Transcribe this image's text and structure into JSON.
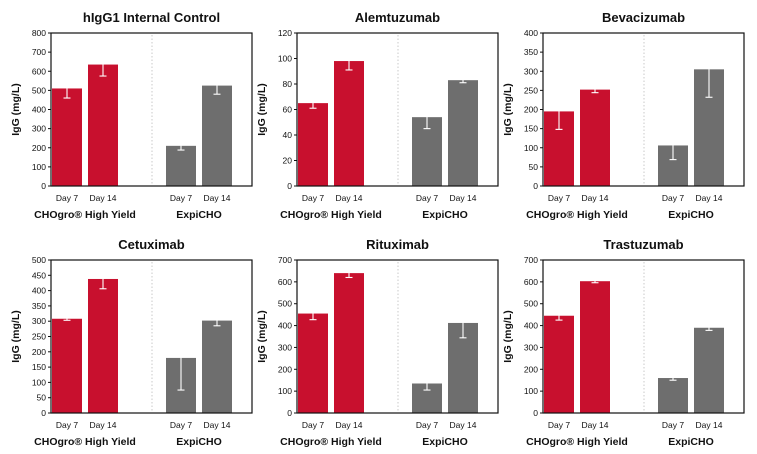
{
  "chart_data": [
    {
      "type": "bar",
      "title": "hIgG1 Internal Control",
      "ylabel": "IgG (mg/L)",
      "ylim": [
        0,
        800
      ],
      "yticks": [
        0,
        100,
        200,
        300,
        400,
        500,
        600,
        700,
        800
      ],
      "categories": [
        "Day 7",
        "Day 14",
        "Day 7",
        "Day 14"
      ],
      "groups": [
        "CHOgro® High Yield",
        "ExpiCHO"
      ],
      "values": [
        510,
        635,
        210,
        525
      ],
      "errors": [
        50,
        60,
        22,
        45
      ]
    },
    {
      "type": "bar",
      "title": "Alemtuzumab",
      "ylabel": "IgG (mg/L)",
      "ylim": [
        0,
        120
      ],
      "yticks": [
        0,
        20,
        40,
        60,
        80,
        100,
        120
      ],
      "categories": [
        "Day 7",
        "Day 14",
        "Day 7",
        "Day 14"
      ],
      "groups": [
        "CHOgro® High Yield",
        "ExpiCHO"
      ],
      "values": [
        65,
        98,
        54,
        83
      ],
      "errors": [
        4,
        7,
        9,
        2
      ]
    },
    {
      "type": "bar",
      "title": "Bevacizumab",
      "ylabel": "IgG (mg/L)",
      "ylim": [
        0,
        400
      ],
      "yticks": [
        0,
        50,
        100,
        150,
        200,
        250,
        300,
        350,
        400
      ],
      "categories": [
        "Day 7",
        "Day 14",
        "Day 7",
        "Day 14"
      ],
      "groups": [
        "CHOgro® High Yield",
        "ExpiCHO"
      ],
      "values": [
        195,
        252,
        106,
        305
      ],
      "errors": [
        47,
        8,
        37,
        73
      ]
    },
    {
      "type": "bar",
      "title": "Cetuximab",
      "ylabel": "IgG (mg/L)",
      "ylim": [
        0,
        500
      ],
      "yticks": [
        0,
        50,
        100,
        150,
        200,
        250,
        300,
        350,
        400,
        450,
        500
      ],
      "categories": [
        "Day 7",
        "Day 14",
        "Day 7",
        "Day 14"
      ],
      "groups": [
        "CHOgro® High Yield",
        "ExpiCHO"
      ],
      "values": [
        308,
        438,
        180,
        302
      ],
      "errors": [
        5,
        32,
        105,
        17
      ]
    },
    {
      "type": "bar",
      "title": "Rituximab",
      "ylabel": "IgG (mg/L)",
      "ylim": [
        0,
        700
      ],
      "yticks": [
        0,
        100,
        200,
        300,
        400,
        500,
        600,
        700
      ],
      "categories": [
        "Day 7",
        "Day 14",
        "Day 7",
        "Day 14"
      ],
      "groups": [
        "CHOgro® High Yield",
        "ExpiCHO"
      ],
      "values": [
        455,
        640,
        135,
        412
      ],
      "errors": [
        28,
        20,
        30,
        68
      ]
    },
    {
      "type": "bar",
      "title": "Trastuzumab",
      "ylabel": "IgG (mg/L)",
      "ylim": [
        0,
        700
      ],
      "yticks": [
        0,
        100,
        200,
        300,
        400,
        500,
        600,
        700
      ],
      "categories": [
        "Day 7",
        "Day 14",
        "Day 7",
        "Day 14"
      ],
      "groups": [
        "CHOgro® High Yield",
        "ExpiCHO"
      ],
      "values": [
        445,
        603,
        160,
        390
      ],
      "errors": [
        20,
        7,
        10,
        12
      ]
    }
  ],
  "colors": {
    "chogro": "#c8102e",
    "expicho": "#6e6e6e",
    "axis": "#111111",
    "divider": "#bdbdbd"
  }
}
